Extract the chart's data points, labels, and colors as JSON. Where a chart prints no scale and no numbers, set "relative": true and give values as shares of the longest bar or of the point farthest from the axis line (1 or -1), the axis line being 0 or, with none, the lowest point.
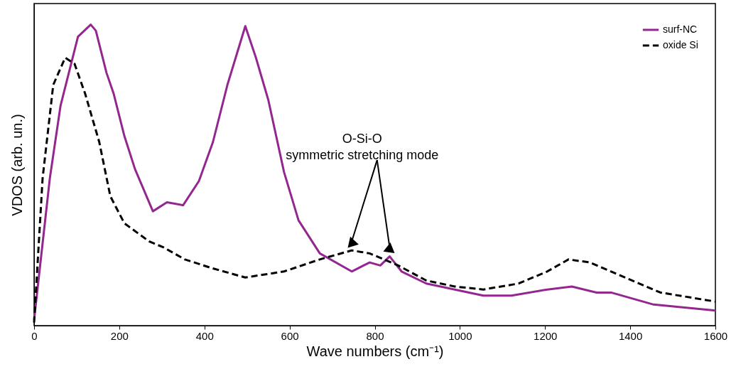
{
  "chart_data": {
    "type": "line",
    "relative": true,
    "xlabel": "Wave numbers (cm⁻¹)",
    "ylabel": "VDOS (arb. un.)",
    "xlim": [
      0,
      1600
    ],
    "xticks": [
      0,
      200,
      400,
      600,
      800,
      {
        "value": 1000,
        "label": "1000"
      },
      {
        "value": 1200,
        "label": "1200"
      },
      {
        "value": 1400,
        "label": "1400"
      },
      {
        "value": 1600,
        "label": "1600"
      }
    ],
    "grid": false,
    "legend": "top right",
    "marker": "none",
    "annotations": [
      {
        "text": "O-Si-O",
        "x": 746,
        "y": 0.28
      },
      {
        "text": "symmetric stretching mode",
        "x": 835,
        "y": 0.26
      }
    ],
    "series": [
      {
        "name": "surf-NC",
        "color": "#93278f",
        "line_style": "solid",
        "x": [
          0,
          37,
          62,
          87,
          103,
          133,
          145,
          170,
          187,
          212,
          237,
          279,
          312,
          350,
          387,
          420,
          454,
          496,
          521,
          550,
          587,
          621,
          671,
          746,
          788,
          813,
          835,
          863,
          921,
          988,
          1055,
          1121,
          1205,
          1263,
          1321,
          1355,
          1455,
          1600
        ],
        "values": [
          0.02,
          0.49,
          0.73,
          0.87,
          0.96,
          1.0,
          0.98,
          0.84,
          0.77,
          0.63,
          0.52,
          0.38,
          0.41,
          0.4,
          0.48,
          0.61,
          0.8,
          0.995,
          0.89,
          0.75,
          0.51,
          0.35,
          0.24,
          0.18,
          0.21,
          0.2,
          0.23,
          0.18,
          0.14,
          0.12,
          0.1,
          0.1,
          0.12,
          0.13,
          0.11,
          0.11,
          0.07,
          0.05
        ]
      },
      {
        "name": "oxide Si",
        "color": "#000000",
        "line_style": "dashed",
        "x": [
          0,
          20,
          45,
          73,
          95,
          120,
          153,
          179,
          212,
          270,
          304,
          354,
          420,
          496,
          587,
          671,
          746,
          788,
          855,
          921,
          988,
          1055,
          1138,
          1205,
          1255,
          1305,
          1371,
          1471,
          1600
        ],
        "values": [
          0.01,
          0.49,
          0.8,
          0.89,
          0.87,
          0.77,
          0.61,
          0.43,
          0.34,
          0.28,
          0.26,
          0.22,
          0.19,
          0.16,
          0.18,
          0.22,
          0.25,
          0.24,
          0.2,
          0.15,
          0.13,
          0.12,
          0.14,
          0.18,
          0.22,
          0.21,
          0.17,
          0.11,
          0.08
        ]
      }
    ]
  }
}
